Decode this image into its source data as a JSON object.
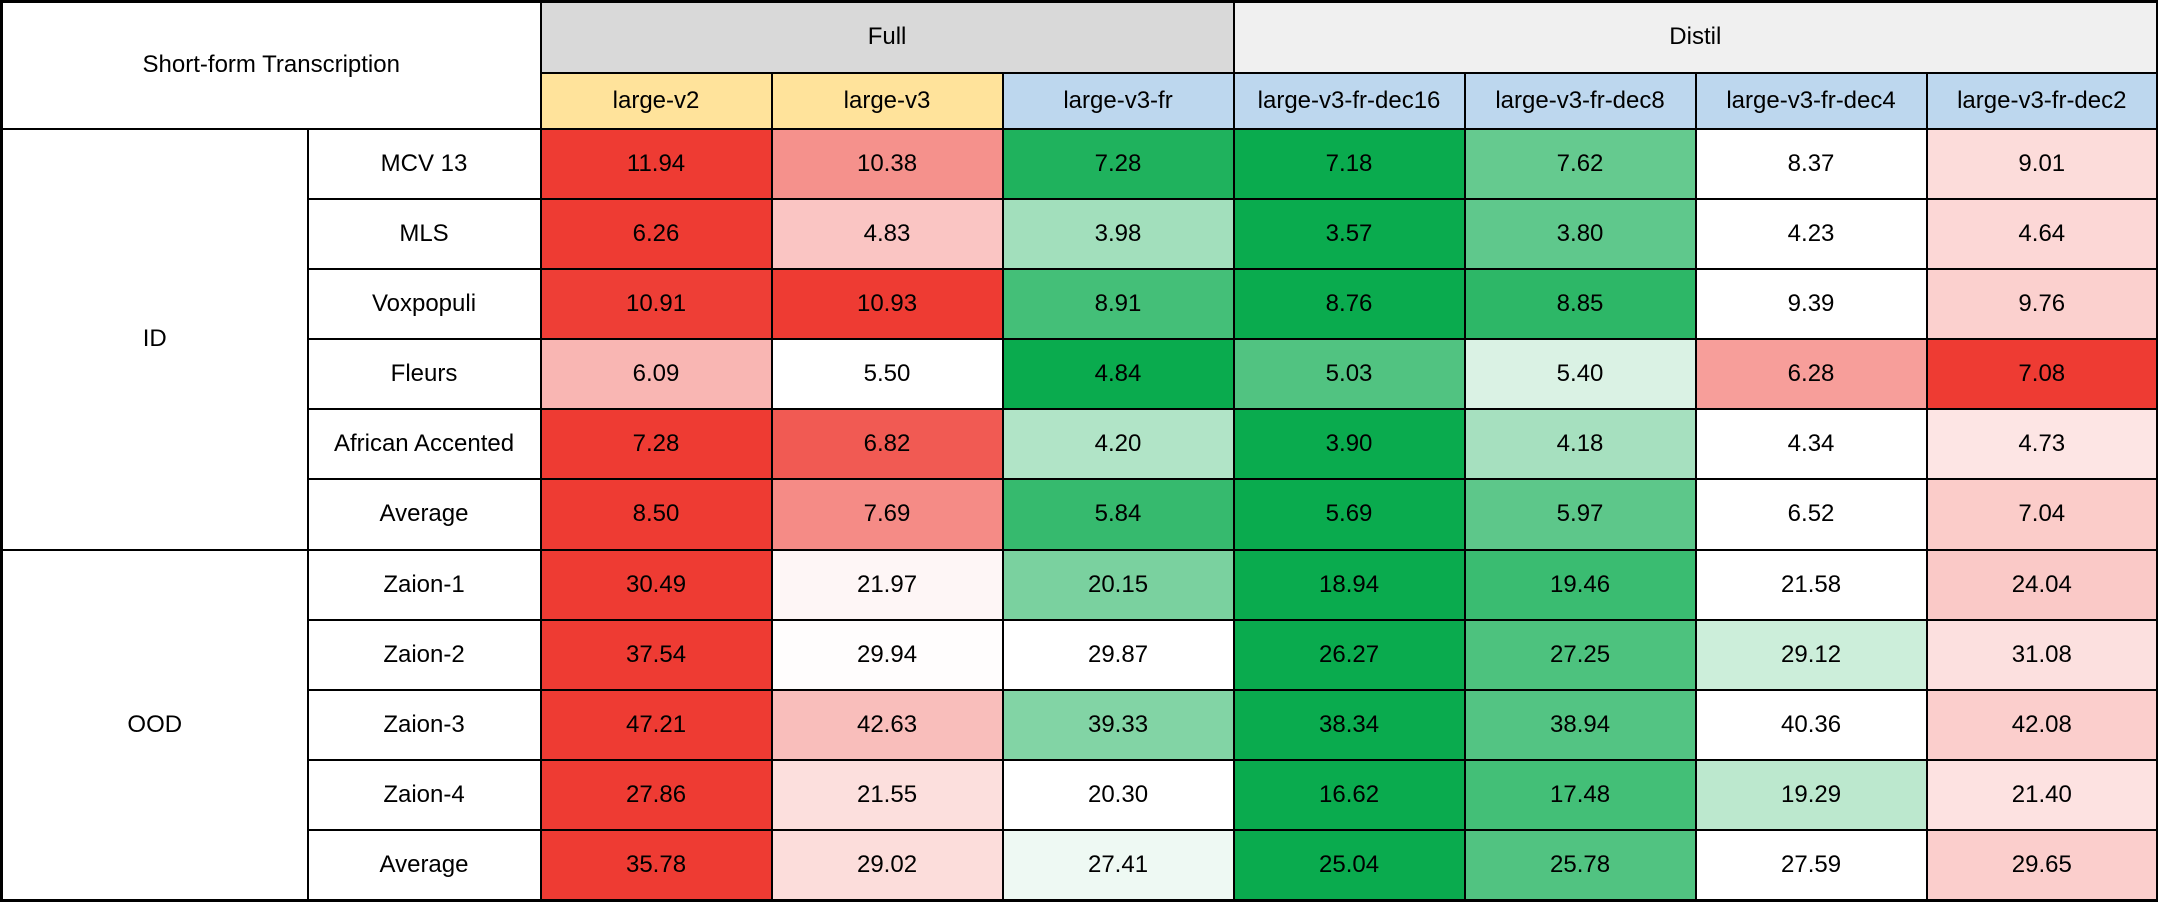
{
  "chart_data": {
    "type": "table",
    "title": "Short-form Transcription",
    "column_groups": [
      {
        "label": "Full",
        "span": 3
      },
      {
        "label": "Distil",
        "span": 4
      }
    ],
    "columns": [
      {
        "label": "large-v2",
        "header": "yellow"
      },
      {
        "label": "large-v3",
        "header": "yellow"
      },
      {
        "label": "large-v3-fr",
        "header": "blue"
      },
      {
        "label": "large-v3-fr-dec16",
        "header": "blue"
      },
      {
        "label": "large-v3-fr-dec8",
        "header": "blue"
      },
      {
        "label": "large-v3-fr-dec4",
        "header": "blue"
      },
      {
        "label": "large-v3-fr-dec2",
        "header": "blue"
      }
    ],
    "row_groups": [
      {
        "label": "ID",
        "rows": [
          {
            "label": "MCV 13",
            "values": [
              "11.94",
              "10.38",
              "7.28",
              "7.18",
              "7.62",
              "8.37",
              "9.01"
            ]
          },
          {
            "label": "MLS",
            "values": [
              "6.26",
              "4.83",
              "3.98",
              "3.57",
              "3.80",
              "4.23",
              "4.64"
            ]
          },
          {
            "label": "Voxpopuli",
            "values": [
              "10.91",
              "10.93",
              "8.91",
              "8.76",
              "8.85",
              "9.39",
              "9.76"
            ]
          },
          {
            "label": "Fleurs",
            "values": [
              "6.09",
              "5.50",
              "4.84",
              "5.03",
              "5.40",
              "6.28",
              "7.08"
            ]
          },
          {
            "label": "African Accented",
            "values": [
              "7.28",
              "6.82",
              "4.20",
              "3.90",
              "4.18",
              "4.34",
              "4.73"
            ]
          },
          {
            "label": "Average",
            "values": [
              "8.50",
              "7.69",
              "5.84",
              "5.69",
              "5.97",
              "6.52",
              "7.04"
            ]
          }
        ]
      },
      {
        "label": "OOD",
        "rows": [
          {
            "label": "Zaion-1",
            "values": [
              "30.49",
              "21.97",
              "20.15",
              "18.94",
              "19.46",
              "21.58",
              "24.04"
            ]
          },
          {
            "label": "Zaion-2",
            "values": [
              "37.54",
              "29.94",
              "29.87",
              "26.27",
              "27.25",
              "29.12",
              "31.08"
            ]
          },
          {
            "label": "Zaion-3",
            "values": [
              "47.21",
              "42.63",
              "39.33",
              "38.34",
              "38.94",
              "40.36",
              "42.08"
            ]
          },
          {
            "label": "Zaion-4",
            "values": [
              "27.86",
              "21.55",
              "20.30",
              "16.62",
              "17.48",
              "19.29",
              "21.40"
            ]
          },
          {
            "label": "Average",
            "values": [
              "35.78",
              "29.02",
              "27.41",
              "25.04",
              "25.78",
              "27.59",
              "29.65"
            ]
          }
        ]
      }
    ],
    "layout": {
      "heatmap_midpoint": "row median",
      "legend": "none",
      "grid": "black cell borders"
    }
  },
  "colors": {
    "group_full_bg": "#D9D9D9",
    "group_distil_bg": "#F0F0F0",
    "header_yellow": "#FFE39B",
    "header_blue": "#BDD7EE",
    "scale_green_best": "#0AAB4E",
    "scale_white_mid": "#FFFFFF",
    "scale_red_worst": "#EE3B33",
    "border": "#000000",
    "text": "#000000"
  }
}
